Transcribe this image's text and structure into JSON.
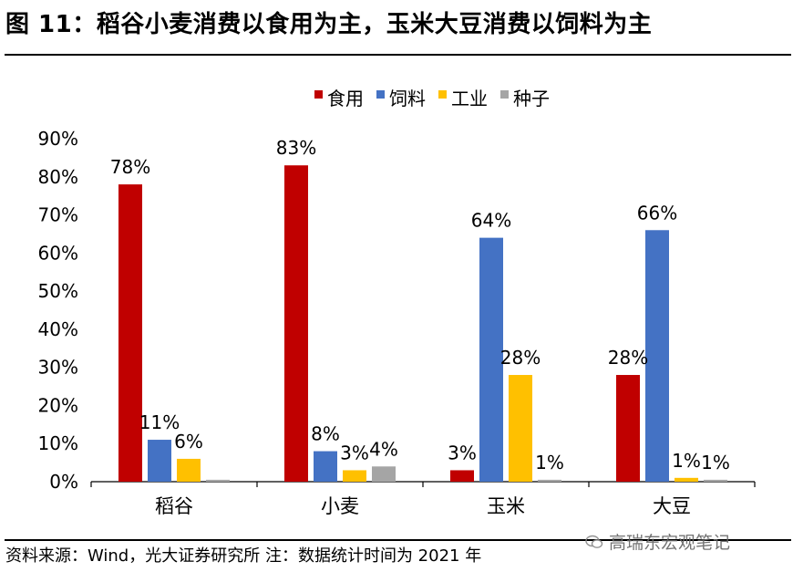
{
  "figure": {
    "title": "图 11：稻谷小麦消费以食用为主，玉米大豆消费以饲料为主",
    "source": "资料来源：Wind，光大证券研究所  注：数据统计时间为 2021 年",
    "watermark": "高瑞东宏观笔记"
  },
  "chart_data": {
    "type": "bar",
    "title": "",
    "xlabel": "",
    "ylabel": "",
    "categories": [
      "稻谷",
      "小麦",
      "玉米",
      "大豆"
    ],
    "series": [
      {
        "name": "食用",
        "color": "#C00000",
        "values": [
          78,
          83,
          3,
          28
        ],
        "labels": [
          "78%",
          "83%",
          "3%",
          "28%"
        ]
      },
      {
        "name": "饲料",
        "color": "#4472C4",
        "values": [
          11,
          8,
          64,
          66
        ],
        "labels": [
          "11%",
          "8%",
          "64%",
          "66%"
        ]
      },
      {
        "name": "工业",
        "color": "#FFC000",
        "values": [
          6,
          3,
          28,
          1
        ],
        "labels": [
          "6%",
          "3%",
          "28%",
          "1%"
        ]
      },
      {
        "name": "种子",
        "color": "#A5A5A5",
        "values": [
          0.5,
          4,
          0.5,
          0.5
        ],
        "labels": [
          "",
          "4%",
          "1%",
          "1%"
        ]
      }
    ],
    "yticks": [
      "0%",
      "10%",
      "20%",
      "30%",
      "40%",
      "50%",
      "60%",
      "70%",
      "80%",
      "90%"
    ],
    "ylim": [
      0,
      90
    ],
    "legend_position": "top-center",
    "grid": false
  }
}
